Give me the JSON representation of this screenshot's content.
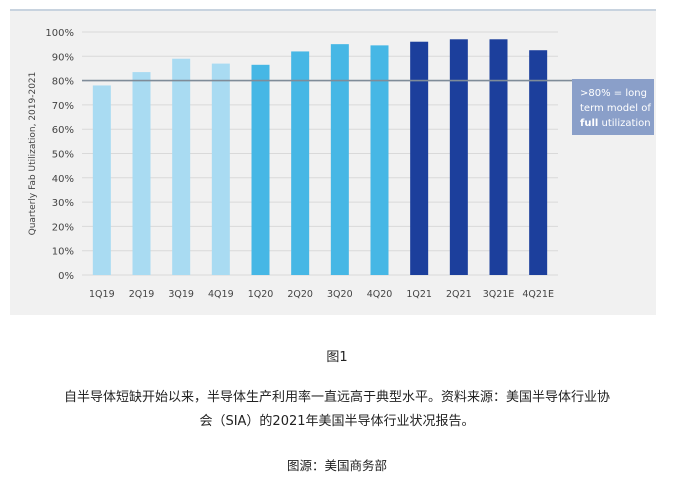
{
  "chart_data": {
    "type": "bar",
    "ylabel": "Quarterly Fab Utilization, 2019-2021",
    "ylim": [
      0,
      100
    ],
    "yticks": [
      "0%",
      "10%",
      "20%",
      "30%",
      "40%",
      "50%",
      "60%",
      "70%",
      "80%",
      "90%",
      "100%"
    ],
    "categories": [
      "1Q19",
      "2Q19",
      "3Q19",
      "4Q19",
      "1Q20",
      "2Q20",
      "3Q20",
      "4Q20",
      "1Q21",
      "2Q21",
      "3Q21E",
      "4Q21E"
    ],
    "values": [
      78,
      83.5,
      89,
      87,
      86.5,
      92,
      95,
      94.5,
      96,
      97,
      97,
      92.5
    ],
    "bar_colors": [
      "#a9dbf2",
      "#a9dbf2",
      "#a9dbf2",
      "#a9dbf2",
      "#46b7e5",
      "#46b7e5",
      "#46b7e5",
      "#46b7e5",
      "#1c3f9c",
      "#1c3f9c",
      "#1c3f9c",
      "#1c3f9c"
    ],
    "reference_line": {
      "value": 80,
      "color": "#7f8c99"
    },
    "annotation": {
      "line1": ">80% = long",
      "line2": "term model of",
      "bold": "full",
      "rest": " utilization",
      "bg_color": "#8a9fc9"
    },
    "grid": true
  },
  "captions": {
    "figure_label": "图1",
    "line1": "自半导体短缺开始以来，半导体生产利用率一直远高于典型水平。资料来源：美国半导体行业协",
    "line2": "会（SIA）的2021年美国半导体行业状况报告。",
    "source": "图源：美国商务部"
  }
}
